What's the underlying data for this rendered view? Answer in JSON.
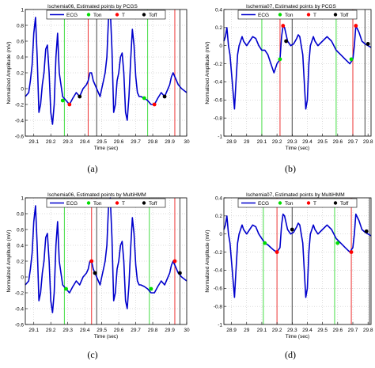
{
  "captions": [
    "(a)",
    "(b)",
    "(c)",
    "(d)"
  ],
  "colors": {
    "ecg": "#0000cc",
    "ton": "#00dd00",
    "t": "#ff0000",
    "toff": "#000000",
    "ton_line": "#44dd44",
    "t_line": "#ee3333",
    "toff_line": "#444444"
  },
  "chart_data": [
    {
      "type": "line",
      "title": "Ischemia06, Estimated points by PCGS",
      "xlabel": "Time (sec)",
      "ylabel": "Normalized Amplitude (mV)",
      "xlim": [
        29.05,
        30.0
      ],
      "ylim": [
        -0.6,
        1.0
      ],
      "xticks": [
        29.1,
        29.2,
        29.3,
        29.4,
        29.5,
        29.6,
        29.7,
        29.8,
        29.9,
        30
      ],
      "yticks": [
        -0.6,
        -0.4,
        -0.2,
        0,
        0.2,
        0.4,
        0.6,
        0.8,
        1
      ],
      "xtick_labels": [
        "29.1",
        "29.2",
        "29.3",
        "29.4",
        "29.5",
        "29.6",
        "29.7",
        "29.8",
        "29.9",
        "30"
      ],
      "ytick_labels": [
        "-0.6",
        "-0.4",
        "-0.2",
        "0",
        "0.2",
        "0.4",
        "0.6",
        "0.8",
        "1"
      ],
      "grid": true,
      "legend": [
        "ECG",
        "Ton",
        "T",
        "Toff"
      ],
      "legend_position": "top",
      "vlines": [
        {
          "x": 29.28,
          "kind": "ton"
        },
        {
          "x": 29.42,
          "kind": "t"
        },
        {
          "x": 29.47,
          "kind": "toff"
        },
        {
          "x": 29.77,
          "kind": "ton"
        },
        {
          "x": 29.93,
          "kind": "t"
        },
        {
          "x": 29.96,
          "kind": "toff"
        }
      ],
      "markers": [
        {
          "x": 29.27,
          "y": -0.15,
          "kind": "ton"
        },
        {
          "x": 29.31,
          "y": -0.2,
          "kind": "t"
        },
        {
          "x": 29.37,
          "y": -0.1,
          "kind": "toff"
        },
        {
          "x": 29.75,
          "y": -0.12,
          "kind": "ton"
        },
        {
          "x": 29.81,
          "y": -0.2,
          "kind": "t"
        },
        {
          "x": 29.87,
          "y": -0.1,
          "kind": "toff"
        }
      ],
      "ecg": {
        "x": [
          29.05,
          29.07,
          29.08,
          29.09,
          29.1,
          29.11,
          29.12,
          29.13,
          29.14,
          29.15,
          29.16,
          29.17,
          29.18,
          29.19,
          29.2,
          29.21,
          29.22,
          29.23,
          29.24,
          29.25,
          29.27,
          29.29,
          29.31,
          29.33,
          29.35,
          29.37,
          29.39,
          29.41,
          29.42,
          29.43,
          29.44,
          29.45,
          29.47,
          29.49,
          29.5,
          29.51,
          29.52,
          29.53,
          29.54,
          29.55,
          29.56,
          29.57,
          29.58,
          29.59,
          29.6,
          29.61,
          29.62,
          29.63,
          29.64,
          29.65,
          29.66,
          29.67,
          29.68,
          29.69,
          29.7,
          29.71,
          29.72,
          29.73,
          29.75,
          29.77,
          29.79,
          29.81,
          29.83,
          29.85,
          29.87,
          29.89,
          29.9,
          29.91,
          29.92,
          29.93,
          29.95,
          29.97,
          30.0
        ],
        "y": [
          -0.1,
          -0.05,
          0.1,
          0.3,
          0.7,
          0.9,
          0.4,
          -0.3,
          -0.2,
          0.05,
          0.2,
          0.5,
          0.55,
          0.2,
          -0.3,
          -0.45,
          -0.2,
          0.4,
          0.7,
          0.2,
          -0.1,
          -0.15,
          -0.2,
          -0.12,
          -0.05,
          -0.1,
          0.0,
          0.05,
          0.1,
          0.2,
          0.2,
          0.1,
          0.0,
          -0.1,
          0.0,
          0.1,
          0.2,
          0.4,
          0.9,
          1.0,
          0.5,
          -0.3,
          -0.2,
          0.1,
          0.2,
          0.4,
          0.45,
          0.2,
          -0.3,
          -0.4,
          -0.1,
          0.35,
          0.75,
          0.55,
          0.15,
          -0.05,
          -0.1,
          -0.1,
          -0.12,
          -0.15,
          -0.2,
          -0.2,
          -0.12,
          -0.05,
          -0.1,
          0.0,
          0.05,
          0.15,
          0.2,
          0.15,
          0.05,
          0.0,
          -0.05
        ]
      }
    },
    {
      "type": "line",
      "title": "Ischemia07, Estimated points by PCGS",
      "xlabel": "Time (sec)",
      "ylabel": "Normalized Amplitude (mV)",
      "xlim": [
        28.85,
        29.82
      ],
      "ylim": [
        -1.0,
        0.4
      ],
      "xticks": [
        28.9,
        29.0,
        29.1,
        29.2,
        29.3,
        29.4,
        29.5,
        29.6,
        29.7,
        29.8
      ],
      "yticks": [
        -1.0,
        -0.8,
        -0.6,
        -0.4,
        -0.2,
        0,
        0.2,
        0.4
      ],
      "xtick_labels": [
        "28.9",
        "29",
        "29.1",
        "29.2",
        "29.3",
        "29.4",
        "29.5",
        "29.6",
        "29.7",
        "29.8"
      ],
      "ytick_labels": [
        "-1",
        "-0.8",
        "-0.6",
        "-0.4",
        "-0.2",
        "0",
        "0.2",
        "0.4"
      ],
      "grid": true,
      "legend": [
        "ECG",
        "Ton",
        "T",
        "Toff"
      ],
      "legend_position": "top",
      "vlines": [
        {
          "x": 29.1,
          "kind": "ton"
        },
        {
          "x": 29.22,
          "kind": "t"
        },
        {
          "x": 29.3,
          "kind": "toff"
        },
        {
          "x": 29.59,
          "kind": "ton"
        },
        {
          "x": 29.7,
          "kind": "t"
        },
        {
          "x": 29.78,
          "kind": "toff"
        }
      ],
      "markers": [
        {
          "x": 29.22,
          "y": -0.15,
          "kind": "ton"
        },
        {
          "x": 29.24,
          "y": 0.22,
          "kind": "t"
        },
        {
          "x": 29.26,
          "y": 0.05,
          "kind": "toff"
        },
        {
          "x": 29.69,
          "y": -0.15,
          "kind": "ton"
        },
        {
          "x": 29.72,
          "y": 0.22,
          "kind": "t"
        },
        {
          "x": 29.8,
          "y": 0.02,
          "kind": "toff"
        }
      ],
      "ecg": {
        "x": [
          28.85,
          28.86,
          28.87,
          28.88,
          28.89,
          28.9,
          28.91,
          28.92,
          28.93,
          28.94,
          28.95,
          28.96,
          28.97,
          28.98,
          29.0,
          29.02,
          29.04,
          29.06,
          29.08,
          29.1,
          29.12,
          29.14,
          29.16,
          29.18,
          29.2,
          29.22,
          29.23,
          29.24,
          29.25,
          29.27,
          29.29,
          29.31,
          29.33,
          29.34,
          29.35,
          29.36,
          29.37,
          29.38,
          29.39,
          29.4,
          29.41,
          29.42,
          29.43,
          29.44,
          29.45,
          29.47,
          29.5,
          29.53,
          29.56,
          29.59,
          29.62,
          29.65,
          29.68,
          29.7,
          29.71,
          29.72,
          29.74,
          29.76,
          29.78,
          29.8,
          29.82
        ],
        "y": [
          0.05,
          0.1,
          0.2,
          0.0,
          -0.1,
          -0.3,
          -0.5,
          -0.7,
          -0.4,
          -0.1,
          0.0,
          0.05,
          0.1,
          0.05,
          0.0,
          0.05,
          0.1,
          0.08,
          0.0,
          -0.05,
          -0.05,
          -0.1,
          -0.2,
          -0.3,
          -0.2,
          -0.15,
          0.1,
          0.22,
          0.2,
          0.05,
          0.0,
          0.02,
          0.08,
          0.12,
          0.1,
          0.0,
          -0.1,
          -0.4,
          -0.7,
          -0.6,
          -0.2,
          0.0,
          0.05,
          0.1,
          0.05,
          0.0,
          0.05,
          0.1,
          0.05,
          -0.05,
          -0.1,
          -0.15,
          -0.2,
          -0.15,
          0.0,
          0.22,
          0.15,
          0.05,
          0.02,
          0.0,
          -0.02
        ]
      }
    },
    {
      "type": "line",
      "title": "Ischemia06, Estimated points by MultiHMM",
      "xlabel": "Time (sec)",
      "ylabel": "Normalized Amplitude (mV)",
      "xlim": [
        29.05,
        30.0
      ],
      "ylim": [
        -0.6,
        1.0
      ],
      "xticks": [
        29.1,
        29.2,
        29.3,
        29.4,
        29.5,
        29.6,
        29.7,
        29.8,
        29.9,
        30
      ],
      "yticks": [
        -0.6,
        -0.4,
        -0.2,
        0,
        0.2,
        0.4,
        0.6,
        0.8,
        1
      ],
      "xtick_labels": [
        "29.1",
        "29.2",
        "29.3",
        "29.4",
        "29.5",
        "29.6",
        "29.7",
        "29.8",
        "29.9",
        "30"
      ],
      "ytick_labels": [
        "-0.6",
        "-0.4",
        "-0.2",
        "0",
        "0.2",
        "0.4",
        "0.6",
        "0.8",
        "1"
      ],
      "grid": true,
      "legend": [
        "ECG",
        "Ton",
        "T",
        "Toff"
      ],
      "legend_position": "top",
      "vlines": [
        {
          "x": 29.28,
          "kind": "ton"
        },
        {
          "x": 29.44,
          "kind": "t"
        },
        {
          "x": 29.47,
          "kind": "toff"
        },
        {
          "x": 29.78,
          "kind": "ton"
        },
        {
          "x": 29.93,
          "kind": "t"
        },
        {
          "x": 29.96,
          "kind": "toff"
        }
      ],
      "markers": [
        {
          "x": 29.29,
          "y": -0.15,
          "kind": "ton"
        },
        {
          "x": 29.44,
          "y": 0.2,
          "kind": "t"
        },
        {
          "x": 29.46,
          "y": 0.05,
          "kind": "toff"
        },
        {
          "x": 29.79,
          "y": -0.15,
          "kind": "ton"
        },
        {
          "x": 29.93,
          "y": 0.2,
          "kind": "t"
        },
        {
          "x": 29.96,
          "y": 0.05,
          "kind": "toff"
        }
      ],
      "ecg": {
        "x": [
          29.05,
          29.07,
          29.08,
          29.09,
          29.1,
          29.11,
          29.12,
          29.13,
          29.14,
          29.15,
          29.16,
          29.17,
          29.18,
          29.19,
          29.2,
          29.21,
          29.22,
          29.23,
          29.24,
          29.25,
          29.27,
          29.29,
          29.31,
          29.33,
          29.35,
          29.37,
          29.39,
          29.41,
          29.42,
          29.43,
          29.44,
          29.45,
          29.47,
          29.49,
          29.5,
          29.51,
          29.52,
          29.53,
          29.54,
          29.55,
          29.56,
          29.57,
          29.58,
          29.59,
          29.6,
          29.61,
          29.62,
          29.63,
          29.64,
          29.65,
          29.66,
          29.67,
          29.68,
          29.69,
          29.7,
          29.71,
          29.72,
          29.73,
          29.75,
          29.77,
          29.79,
          29.81,
          29.83,
          29.85,
          29.87,
          29.89,
          29.9,
          29.91,
          29.92,
          29.93,
          29.95,
          29.97,
          30.0
        ],
        "y": [
          -0.1,
          -0.05,
          0.1,
          0.3,
          0.7,
          0.9,
          0.4,
          -0.3,
          -0.2,
          0.05,
          0.2,
          0.5,
          0.55,
          0.2,
          -0.3,
          -0.45,
          -0.2,
          0.4,
          0.7,
          0.2,
          -0.1,
          -0.15,
          -0.2,
          -0.12,
          -0.05,
          -0.1,
          0.0,
          0.05,
          0.1,
          0.2,
          0.2,
          0.1,
          0.0,
          -0.1,
          0.0,
          0.1,
          0.2,
          0.4,
          0.9,
          1.0,
          0.5,
          -0.3,
          -0.2,
          0.1,
          0.2,
          0.4,
          0.45,
          0.2,
          -0.3,
          -0.4,
          -0.1,
          0.35,
          0.75,
          0.55,
          0.15,
          -0.05,
          -0.1,
          -0.1,
          -0.12,
          -0.15,
          -0.2,
          -0.2,
          -0.12,
          -0.05,
          -0.1,
          0.0,
          0.05,
          0.15,
          0.2,
          0.15,
          0.05,
          0.0,
          -0.05
        ]
      }
    },
    {
      "type": "line",
      "title": "Ischemia07, Estimated points by MultiHMM",
      "xlabel": "Time (sec)",
      "ylabel": "Normalized Amplitude (mV)",
      "xlim": [
        28.85,
        29.82
      ],
      "ylim": [
        -1.0,
        0.4
      ],
      "xticks": [
        28.9,
        29.0,
        29.1,
        29.2,
        29.3,
        29.4,
        29.5,
        29.6,
        29.7,
        29.8
      ],
      "yticks": [
        -1.0,
        -0.8,
        -0.6,
        -0.4,
        -0.2,
        0,
        0.2,
        0.4
      ],
      "xtick_labels": [
        "28.9",
        "29",
        "29.1",
        "29.2",
        "29.3",
        "29.4",
        "29.5",
        "29.6",
        "29.7",
        "29.8"
      ],
      "ytick_labels": [
        "-1",
        "-0.8",
        "-0.6",
        "-0.4",
        "-0.2",
        "0",
        "0.2",
        "0.4"
      ],
      "grid": true,
      "legend": [
        "ECG",
        "Ton",
        "T",
        "Toff"
      ],
      "legend_position": "top",
      "vlines": [
        {
          "x": 29.11,
          "kind": "ton"
        },
        {
          "x": 29.2,
          "kind": "t"
        },
        {
          "x": 29.3,
          "kind": "toff"
        },
        {
          "x": 29.58,
          "kind": "ton"
        },
        {
          "x": 29.69,
          "kind": "t"
        },
        {
          "x": 29.81,
          "kind": "toff"
        }
      ],
      "markers": [
        {
          "x": 29.12,
          "y": -0.1,
          "kind": "ton"
        },
        {
          "x": 29.2,
          "y": -0.2,
          "kind": "t"
        },
        {
          "x": 29.3,
          "y": 0.05,
          "kind": "toff"
        },
        {
          "x": 29.6,
          "y": -0.1,
          "kind": "ton"
        },
        {
          "x": 29.69,
          "y": -0.2,
          "kind": "t"
        },
        {
          "x": 29.79,
          "y": 0.03,
          "kind": "toff"
        }
      ],
      "ecg": {
        "x": [
          28.85,
          28.86,
          28.87,
          28.88,
          28.89,
          28.9,
          28.91,
          28.92,
          28.93,
          28.94,
          28.95,
          28.96,
          28.97,
          28.98,
          29.0,
          29.02,
          29.04,
          29.06,
          29.08,
          29.1,
          29.12,
          29.14,
          29.16,
          29.18,
          29.2,
          29.22,
          29.23,
          29.24,
          29.25,
          29.27,
          29.29,
          29.31,
          29.33,
          29.34,
          29.35,
          29.36,
          29.37,
          29.38,
          29.39,
          29.4,
          29.41,
          29.42,
          29.43,
          29.44,
          29.45,
          29.47,
          29.5,
          29.53,
          29.56,
          29.59,
          29.62,
          29.65,
          29.68,
          29.7,
          29.71,
          29.72,
          29.74,
          29.76,
          29.78,
          29.8,
          29.82
        ],
        "y": [
          0.05,
          0.1,
          0.2,
          0.0,
          -0.1,
          -0.3,
          -0.5,
          -0.7,
          -0.4,
          -0.1,
          0.0,
          0.05,
          0.1,
          0.05,
          0.0,
          0.05,
          0.1,
          0.08,
          0.0,
          -0.05,
          -0.1,
          -0.12,
          -0.15,
          -0.18,
          -0.2,
          -0.15,
          0.1,
          0.22,
          0.2,
          0.05,
          0.0,
          0.02,
          0.08,
          0.12,
          0.1,
          0.0,
          -0.1,
          -0.4,
          -0.7,
          -0.6,
          -0.2,
          0.0,
          0.05,
          0.1,
          0.05,
          0.0,
          0.05,
          0.1,
          0.05,
          -0.05,
          -0.1,
          -0.15,
          -0.2,
          -0.15,
          0.0,
          0.22,
          0.15,
          0.05,
          0.02,
          0.0,
          -0.02
        ]
      }
    }
  ]
}
